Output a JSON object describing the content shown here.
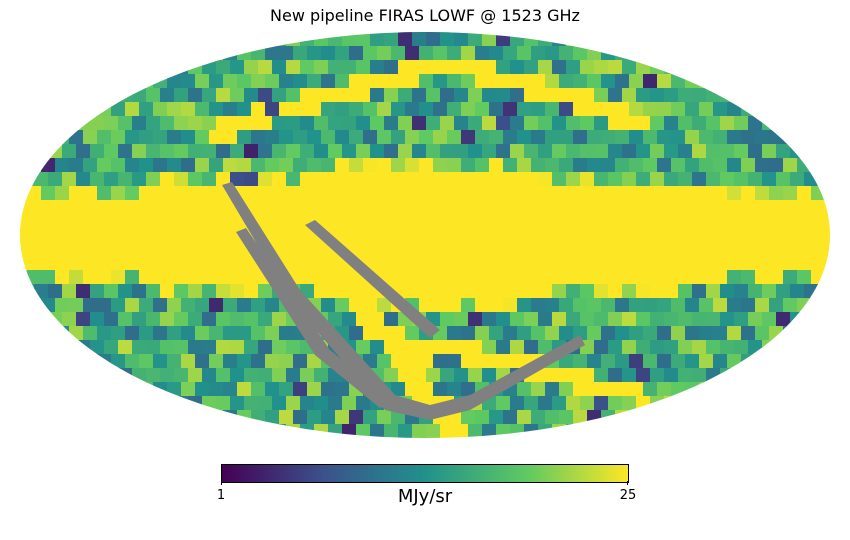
{
  "title": "New pipeline FIRAS LOWF @ 1523 GHz",
  "projection": "mollweide",
  "colormap": {
    "name": "viridis",
    "stops": [
      "#440154",
      "#3b528b",
      "#21918c",
      "#5ec962",
      "#fde725"
    ],
    "mask_color": "#808080"
  },
  "colorbar": {
    "min_label": "1",
    "max_label": "25",
    "unit": "MJy/sr",
    "min": 1,
    "max": 25
  },
  "chart_data": {
    "type": "heatmap",
    "title": "New pipeline FIRAS LOWF @ 1523 GHz",
    "value_range": [
      1,
      25
    ],
    "colorbar_label": "MJy/sr",
    "features": [
      {
        "name": "galactic plane",
        "description": "saturated band at max value (25) across the map equator"
      },
      {
        "name": "masked ecliptic strip",
        "description": "gray (masked) diagonal strips running through lower left"
      },
      {
        "name": "high-latitude background",
        "description": "mottled values roughly 10–20 MJy/sr"
      }
    ]
  }
}
